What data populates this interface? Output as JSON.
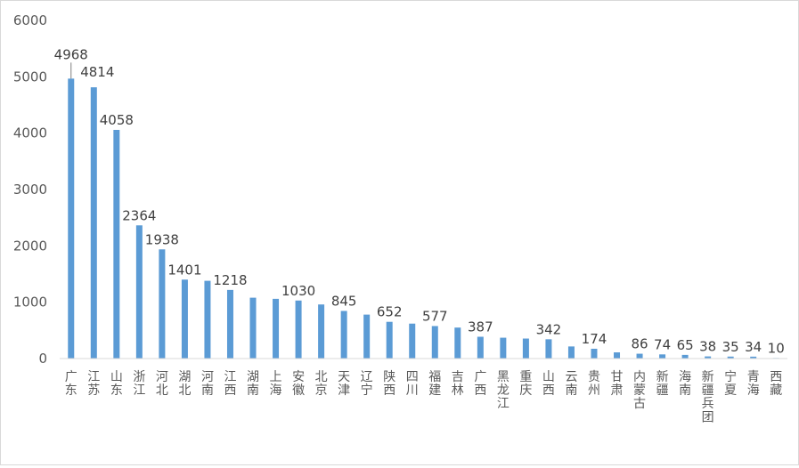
{
  "chart_data": {
    "type": "bar",
    "title": "",
    "xlabel": "",
    "ylabel": "",
    "ylim": [
      0,
      6000
    ],
    "yticks": [
      0,
      1000,
      2000,
      3000,
      4000,
      5000,
      6000
    ],
    "grid": false,
    "legend": "none",
    "bar_color": "#5b9bd5",
    "categories": [
      "广东",
      "江苏",
      "山东",
      "浙江",
      "河北",
      "湖北",
      "河南",
      "江西",
      "湖南",
      "上海",
      "安徽",
      "北京",
      "天津",
      "辽宁",
      "陕西",
      "四川",
      "福建",
      "吉林",
      "广西",
      "黑龙江",
      "重庆",
      "山西",
      "云南",
      "贵州",
      "甘肃",
      "内蒙古",
      "新疆",
      "海南",
      "新疆兵团",
      "宁夏",
      "青海",
      "西藏"
    ],
    "values": [
      4968,
      4814,
      4058,
      2364,
      1938,
      1401,
      1380,
      1218,
      1080,
      1060,
      1030,
      960,
      845,
      780,
      652,
      620,
      577,
      550,
      387,
      370,
      355,
      342,
      215,
      174,
      110,
      86,
      74,
      65,
      38,
      35,
      34,
      10
    ],
    "data_labels": [
      "4968",
      "4814",
      "4058",
      "2364",
      "1938",
      "1401",
      null,
      "1218",
      null,
      null,
      "1030",
      null,
      "845",
      null,
      "652",
      null,
      "577",
      null,
      "387",
      null,
      null,
      "342",
      null,
      "174",
      null,
      "86",
      "74",
      "65",
      "38",
      "35",
      "34",
      "10"
    ]
  }
}
